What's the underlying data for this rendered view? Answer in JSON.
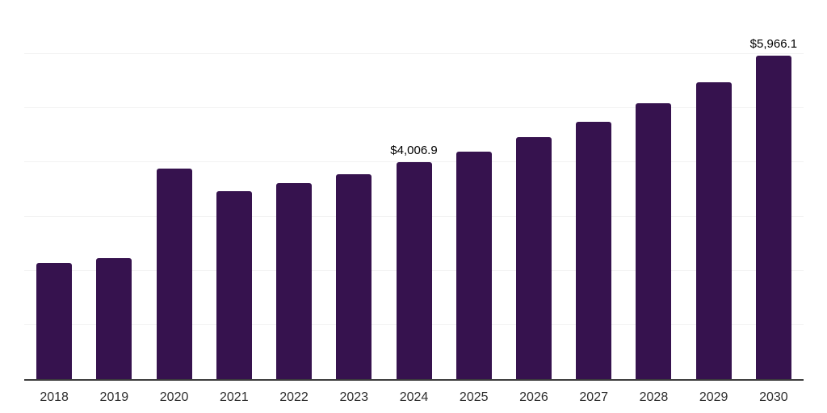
{
  "chart_data": {
    "type": "bar",
    "title": "",
    "xlabel": "",
    "ylabel": "",
    "categories": [
      "2018",
      "2019",
      "2020",
      "2021",
      "2022",
      "2023",
      "2024",
      "2025",
      "2026",
      "2027",
      "2028",
      "2029",
      "2030"
    ],
    "values": [
      2150,
      2230,
      3890,
      3470,
      3620,
      3790,
      4006.9,
      4200,
      4470,
      4750,
      5100,
      5480,
      5966.1
    ],
    "point_labels": {
      "2024": "$4,006.9",
      "2030": "$5,966.1"
    },
    "ylim": [
      0,
      7000
    ],
    "gridline_interval": 1000,
    "grid": "horizontal",
    "legend": "none",
    "bar_color": "#36124e",
    "axis_color": "#3c3c3c",
    "gridline_color": "#f2f2f2",
    "tick_label_color": "#2e2e2e",
    "data_label_color": "#000000"
  }
}
